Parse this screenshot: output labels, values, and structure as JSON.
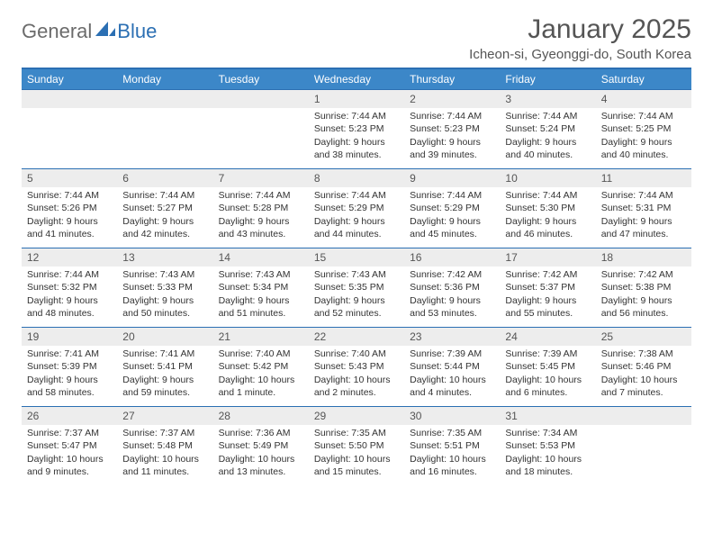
{
  "logo": {
    "part1": "General",
    "part2": "Blue"
  },
  "title": "January 2025",
  "location": "Icheon-si, Gyeonggi-do, South Korea",
  "colors": {
    "header_bg": "#3c87c8",
    "header_border": "#2b6fb3",
    "daynum_bg": "#ededed",
    "text": "#333333",
    "title_text": "#555555"
  },
  "typography": {
    "title_fontsize": 30,
    "location_fontsize": 15,
    "dayheader_fontsize": 12,
    "daynum_fontsize": 12,
    "cell_fontsize": 10.5
  },
  "day_headers": [
    "Sunday",
    "Monday",
    "Tuesday",
    "Wednesday",
    "Thursday",
    "Friday",
    "Saturday"
  ],
  "weeks": [
    [
      null,
      null,
      null,
      {
        "n": "1",
        "sr": "7:44 AM",
        "ss": "5:23 PM",
        "dl": "9 hours and 38 minutes."
      },
      {
        "n": "2",
        "sr": "7:44 AM",
        "ss": "5:23 PM",
        "dl": "9 hours and 39 minutes."
      },
      {
        "n": "3",
        "sr": "7:44 AM",
        "ss": "5:24 PM",
        "dl": "9 hours and 40 minutes."
      },
      {
        "n": "4",
        "sr": "7:44 AM",
        "ss": "5:25 PM",
        "dl": "9 hours and 40 minutes."
      }
    ],
    [
      {
        "n": "5",
        "sr": "7:44 AM",
        "ss": "5:26 PM",
        "dl": "9 hours and 41 minutes."
      },
      {
        "n": "6",
        "sr": "7:44 AM",
        "ss": "5:27 PM",
        "dl": "9 hours and 42 minutes."
      },
      {
        "n": "7",
        "sr": "7:44 AM",
        "ss": "5:28 PM",
        "dl": "9 hours and 43 minutes."
      },
      {
        "n": "8",
        "sr": "7:44 AM",
        "ss": "5:29 PM",
        "dl": "9 hours and 44 minutes."
      },
      {
        "n": "9",
        "sr": "7:44 AM",
        "ss": "5:29 PM",
        "dl": "9 hours and 45 minutes."
      },
      {
        "n": "10",
        "sr": "7:44 AM",
        "ss": "5:30 PM",
        "dl": "9 hours and 46 minutes."
      },
      {
        "n": "11",
        "sr": "7:44 AM",
        "ss": "5:31 PM",
        "dl": "9 hours and 47 minutes."
      }
    ],
    [
      {
        "n": "12",
        "sr": "7:44 AM",
        "ss": "5:32 PM",
        "dl": "9 hours and 48 minutes."
      },
      {
        "n": "13",
        "sr": "7:43 AM",
        "ss": "5:33 PM",
        "dl": "9 hours and 50 minutes."
      },
      {
        "n": "14",
        "sr": "7:43 AM",
        "ss": "5:34 PM",
        "dl": "9 hours and 51 minutes."
      },
      {
        "n": "15",
        "sr": "7:43 AM",
        "ss": "5:35 PM",
        "dl": "9 hours and 52 minutes."
      },
      {
        "n": "16",
        "sr": "7:42 AM",
        "ss": "5:36 PM",
        "dl": "9 hours and 53 minutes."
      },
      {
        "n": "17",
        "sr": "7:42 AM",
        "ss": "5:37 PM",
        "dl": "9 hours and 55 minutes."
      },
      {
        "n": "18",
        "sr": "7:42 AM",
        "ss": "5:38 PM",
        "dl": "9 hours and 56 minutes."
      }
    ],
    [
      {
        "n": "19",
        "sr": "7:41 AM",
        "ss": "5:39 PM",
        "dl": "9 hours and 58 minutes."
      },
      {
        "n": "20",
        "sr": "7:41 AM",
        "ss": "5:41 PM",
        "dl": "9 hours and 59 minutes."
      },
      {
        "n": "21",
        "sr": "7:40 AM",
        "ss": "5:42 PM",
        "dl": "10 hours and 1 minute."
      },
      {
        "n": "22",
        "sr": "7:40 AM",
        "ss": "5:43 PM",
        "dl": "10 hours and 2 minutes."
      },
      {
        "n": "23",
        "sr": "7:39 AM",
        "ss": "5:44 PM",
        "dl": "10 hours and 4 minutes."
      },
      {
        "n": "24",
        "sr": "7:39 AM",
        "ss": "5:45 PM",
        "dl": "10 hours and 6 minutes."
      },
      {
        "n": "25",
        "sr": "7:38 AM",
        "ss": "5:46 PM",
        "dl": "10 hours and 7 minutes."
      }
    ],
    [
      {
        "n": "26",
        "sr": "7:37 AM",
        "ss": "5:47 PM",
        "dl": "10 hours and 9 minutes."
      },
      {
        "n": "27",
        "sr": "7:37 AM",
        "ss": "5:48 PM",
        "dl": "10 hours and 11 minutes."
      },
      {
        "n": "28",
        "sr": "7:36 AM",
        "ss": "5:49 PM",
        "dl": "10 hours and 13 minutes."
      },
      {
        "n": "29",
        "sr": "7:35 AM",
        "ss": "5:50 PM",
        "dl": "10 hours and 15 minutes."
      },
      {
        "n": "30",
        "sr": "7:35 AM",
        "ss": "5:51 PM",
        "dl": "10 hours and 16 minutes."
      },
      {
        "n": "31",
        "sr": "7:34 AM",
        "ss": "5:53 PM",
        "dl": "10 hours and 18 minutes."
      },
      null
    ]
  ],
  "labels": {
    "sunrise": "Sunrise:",
    "sunset": "Sunset:",
    "daylight": "Daylight:"
  }
}
